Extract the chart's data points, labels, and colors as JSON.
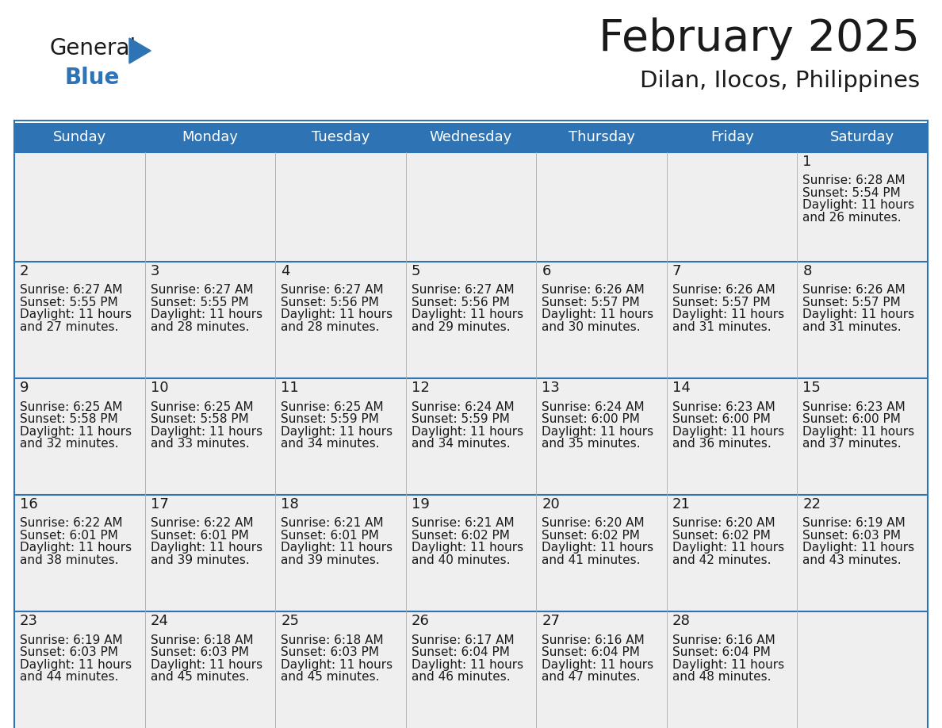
{
  "title": "February 2025",
  "subtitle": "Dilan, Ilocos, Philippines",
  "header_bg": "#2E74B5",
  "header_text_color": "#FFFFFF",
  "cell_bg": "#EFEFEF",
  "border_color": "#2E74B5",
  "day_number_color": "#1a1a1a",
  "cell_text_color": "#1a1a1a",
  "days_of_week": [
    "Sunday",
    "Monday",
    "Tuesday",
    "Wednesday",
    "Thursday",
    "Friday",
    "Saturday"
  ],
  "weeks": [
    [
      {
        "day": null
      },
      {
        "day": null
      },
      {
        "day": null
      },
      {
        "day": null
      },
      {
        "day": null
      },
      {
        "day": null
      },
      {
        "day": 1,
        "sunrise": "6:28 AM",
        "sunset": "5:54 PM",
        "daylight_line1": "Daylight: 11 hours",
        "daylight_line2": "and 26 minutes."
      }
    ],
    [
      {
        "day": 2,
        "sunrise": "6:27 AM",
        "sunset": "5:55 PM",
        "daylight_line1": "Daylight: 11 hours",
        "daylight_line2": "and 27 minutes."
      },
      {
        "day": 3,
        "sunrise": "6:27 AM",
        "sunset": "5:55 PM",
        "daylight_line1": "Daylight: 11 hours",
        "daylight_line2": "and 28 minutes."
      },
      {
        "day": 4,
        "sunrise": "6:27 AM",
        "sunset": "5:56 PM",
        "daylight_line1": "Daylight: 11 hours",
        "daylight_line2": "and 28 minutes."
      },
      {
        "day": 5,
        "sunrise": "6:27 AM",
        "sunset": "5:56 PM",
        "daylight_line1": "Daylight: 11 hours",
        "daylight_line2": "and 29 minutes."
      },
      {
        "day": 6,
        "sunrise": "6:26 AM",
        "sunset": "5:57 PM",
        "daylight_line1": "Daylight: 11 hours",
        "daylight_line2": "and 30 minutes."
      },
      {
        "day": 7,
        "sunrise": "6:26 AM",
        "sunset": "5:57 PM",
        "daylight_line1": "Daylight: 11 hours",
        "daylight_line2": "and 31 minutes."
      },
      {
        "day": 8,
        "sunrise": "6:26 AM",
        "sunset": "5:57 PM",
        "daylight_line1": "Daylight: 11 hours",
        "daylight_line2": "and 31 minutes."
      }
    ],
    [
      {
        "day": 9,
        "sunrise": "6:25 AM",
        "sunset": "5:58 PM",
        "daylight_line1": "Daylight: 11 hours",
        "daylight_line2": "and 32 minutes."
      },
      {
        "day": 10,
        "sunrise": "6:25 AM",
        "sunset": "5:58 PM",
        "daylight_line1": "Daylight: 11 hours",
        "daylight_line2": "and 33 minutes."
      },
      {
        "day": 11,
        "sunrise": "6:25 AM",
        "sunset": "5:59 PM",
        "daylight_line1": "Daylight: 11 hours",
        "daylight_line2": "and 34 minutes."
      },
      {
        "day": 12,
        "sunrise": "6:24 AM",
        "sunset": "5:59 PM",
        "daylight_line1": "Daylight: 11 hours",
        "daylight_line2": "and 34 minutes."
      },
      {
        "day": 13,
        "sunrise": "6:24 AM",
        "sunset": "6:00 PM",
        "daylight_line1": "Daylight: 11 hours",
        "daylight_line2": "and 35 minutes."
      },
      {
        "day": 14,
        "sunrise": "6:23 AM",
        "sunset": "6:00 PM",
        "daylight_line1": "Daylight: 11 hours",
        "daylight_line2": "and 36 minutes."
      },
      {
        "day": 15,
        "sunrise": "6:23 AM",
        "sunset": "6:00 PM",
        "daylight_line1": "Daylight: 11 hours",
        "daylight_line2": "and 37 minutes."
      }
    ],
    [
      {
        "day": 16,
        "sunrise": "6:22 AM",
        "sunset": "6:01 PM",
        "daylight_line1": "Daylight: 11 hours",
        "daylight_line2": "and 38 minutes."
      },
      {
        "day": 17,
        "sunrise": "6:22 AM",
        "sunset": "6:01 PM",
        "daylight_line1": "Daylight: 11 hours",
        "daylight_line2": "and 39 minutes."
      },
      {
        "day": 18,
        "sunrise": "6:21 AM",
        "sunset": "6:01 PM",
        "daylight_line1": "Daylight: 11 hours",
        "daylight_line2": "and 39 minutes."
      },
      {
        "day": 19,
        "sunrise": "6:21 AM",
        "sunset": "6:02 PM",
        "daylight_line1": "Daylight: 11 hours",
        "daylight_line2": "and 40 minutes."
      },
      {
        "day": 20,
        "sunrise": "6:20 AM",
        "sunset": "6:02 PM",
        "daylight_line1": "Daylight: 11 hours",
        "daylight_line2": "and 41 minutes."
      },
      {
        "day": 21,
        "sunrise": "6:20 AM",
        "sunset": "6:02 PM",
        "daylight_line1": "Daylight: 11 hours",
        "daylight_line2": "and 42 minutes."
      },
      {
        "day": 22,
        "sunrise": "6:19 AM",
        "sunset": "6:03 PM",
        "daylight_line1": "Daylight: 11 hours",
        "daylight_line2": "and 43 minutes."
      }
    ],
    [
      {
        "day": 23,
        "sunrise": "6:19 AM",
        "sunset": "6:03 PM",
        "daylight_line1": "Daylight: 11 hours",
        "daylight_line2": "and 44 minutes."
      },
      {
        "day": 24,
        "sunrise": "6:18 AM",
        "sunset": "6:03 PM",
        "daylight_line1": "Daylight: 11 hours",
        "daylight_line2": "and 45 minutes."
      },
      {
        "day": 25,
        "sunrise": "6:18 AM",
        "sunset": "6:03 PM",
        "daylight_line1": "Daylight: 11 hours",
        "daylight_line2": "and 45 minutes."
      },
      {
        "day": 26,
        "sunrise": "6:17 AM",
        "sunset": "6:04 PM",
        "daylight_line1": "Daylight: 11 hours",
        "daylight_line2": "and 46 minutes."
      },
      {
        "day": 27,
        "sunrise": "6:16 AM",
        "sunset": "6:04 PM",
        "daylight_line1": "Daylight: 11 hours",
        "daylight_line2": "and 47 minutes."
      },
      {
        "day": 28,
        "sunrise": "6:16 AM",
        "sunset": "6:04 PM",
        "daylight_line1": "Daylight: 11 hours",
        "daylight_line2": "and 48 minutes."
      },
      {
        "day": null
      }
    ]
  ]
}
